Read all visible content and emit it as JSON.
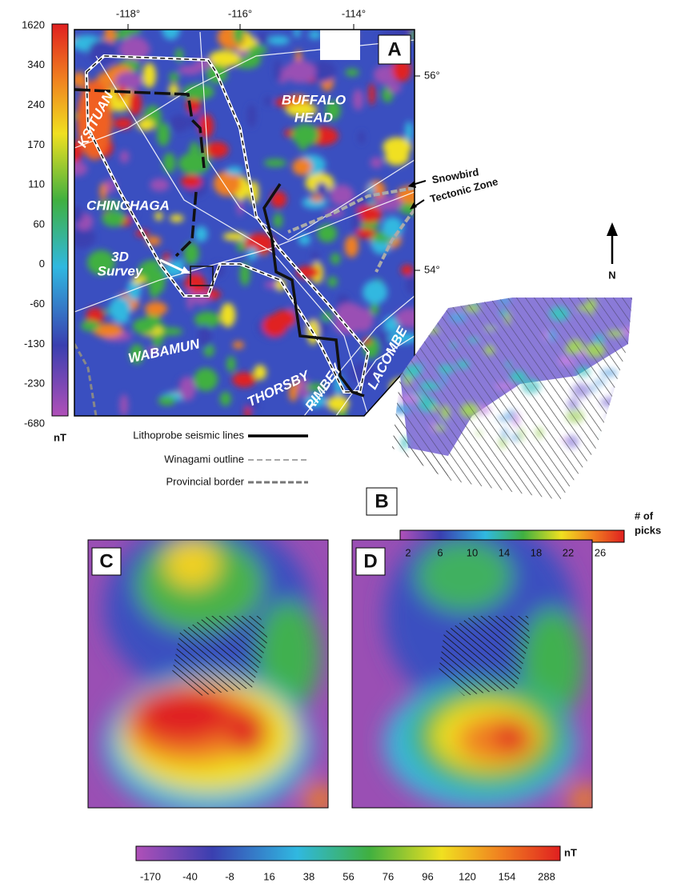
{
  "panel_a": {
    "label": "A",
    "colorbar": {
      "ticks": [
        1620,
        340,
        240,
        170,
        110,
        60,
        0,
        -60,
        -130,
        -230,
        -680
      ],
      "unit": "nT"
    },
    "longitudes": [
      "-118°",
      "-116°",
      "-114°"
    ],
    "latitudes": [
      "56°",
      "54°"
    ],
    "regions": [
      "KSITUAN",
      "BUFFALO",
      "HEAD",
      "CHINCHAGA",
      "WABAMUN",
      "THORSBY",
      "RIMBEY",
      "LACOMBE"
    ],
    "survey_label": [
      "3D",
      "Survey"
    ],
    "annotations": [
      "Snowbird",
      "Tectonic Zone"
    ],
    "legend": [
      "Lithoprobe seismic lines",
      "Winagami outline",
      "Provincial border"
    ]
  },
  "north": "N",
  "panel_b": {
    "label": "B",
    "colorbar": {
      "ticks": [
        2,
        6,
        10,
        14,
        18,
        22,
        26
      ],
      "unit": [
        "# of",
        "picks"
      ]
    }
  },
  "panel_c": {
    "label": "C"
  },
  "panel_d": {
    "label": "D"
  },
  "bottom_colorbar": {
    "ticks": [
      -170,
      -40,
      -8,
      16,
      38,
      56,
      76,
      96,
      120,
      154,
      288
    ],
    "unit": "nT"
  }
}
